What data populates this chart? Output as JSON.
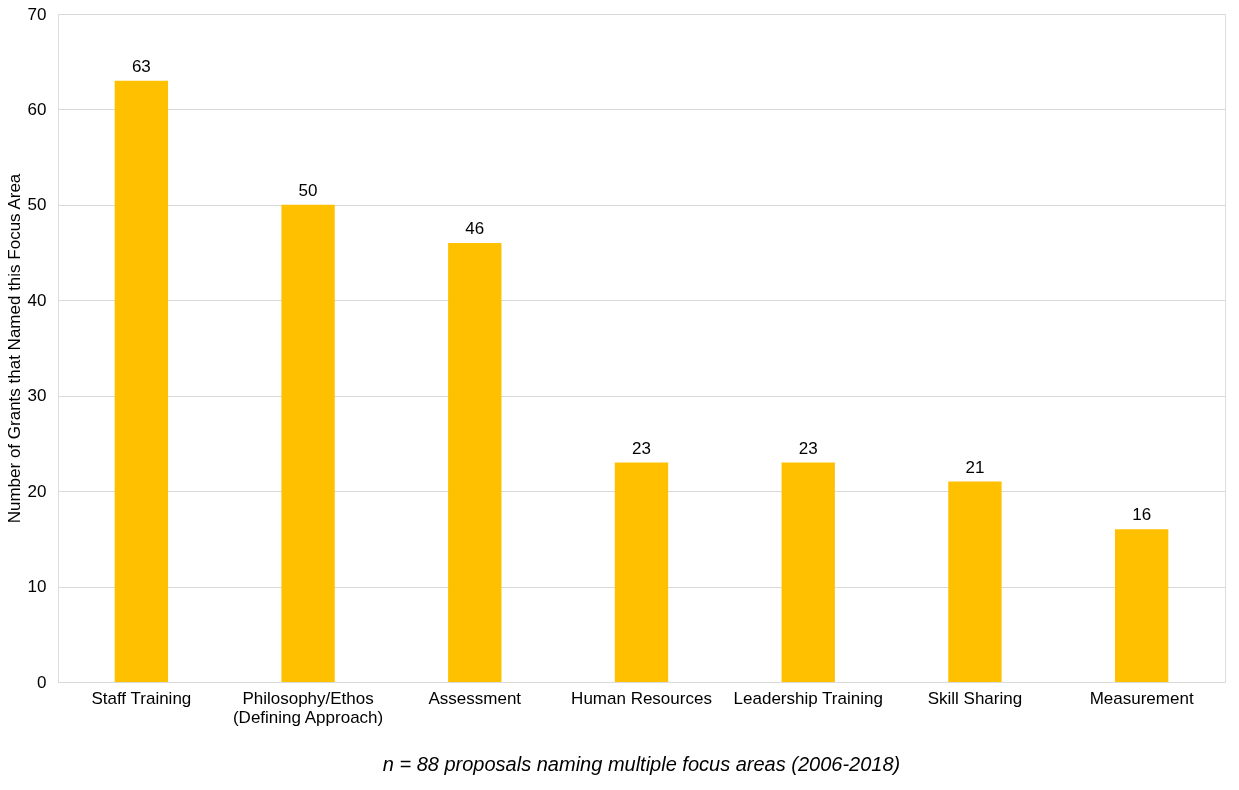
{
  "chart_data": {
    "type": "bar",
    "ylabel": "Number of Grants that Named  this Focus Area",
    "categories": [
      "Staff Training",
      "Philosophy/Ethos\n(Defining Approach)",
      "Assessment",
      "Human Resources",
      "Leadership Training",
      "Skill Sharing",
      "Measurement"
    ],
    "values": [
      63,
      50,
      46,
      23,
      23,
      21,
      16
    ],
    "color": "#ffc000",
    "ylim": [
      0,
      70
    ],
    "yticks": [
      0,
      10,
      20,
      30,
      40,
      50,
      60,
      70
    ],
    "grid": "y",
    "data_labels": true,
    "annotations": [
      "n = 88 proposals naming multiple focus areas (2006-2018)"
    ]
  }
}
